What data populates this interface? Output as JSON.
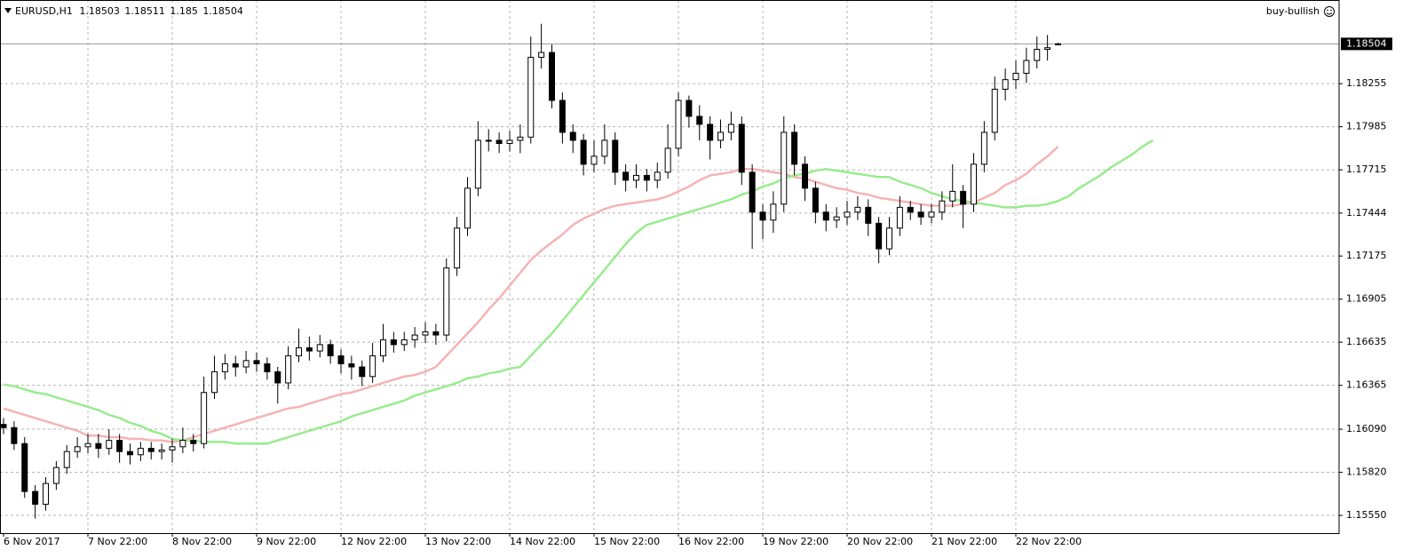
{
  "chart_data": {
    "type": "candlestick",
    "symbol": "EURUSD,H1",
    "indicator_label": "buy-bullish",
    "categories": [
      "6 Nov 2017",
      null,
      null,
      null,
      null,
      null,
      null,
      null,
      "7 Nov 22:00",
      null,
      null,
      null,
      null,
      null,
      null,
      null,
      "8 Nov 22:00",
      null,
      null,
      null,
      null,
      null,
      null,
      null,
      "9 Nov 22:00",
      null,
      null,
      null,
      null,
      null,
      null,
      null,
      "12 Nov 22:00",
      null,
      null,
      null,
      null,
      null,
      null,
      null,
      "13 Nov 22:00",
      null,
      null,
      null,
      null,
      null,
      null,
      null,
      "14 Nov 22:00",
      null,
      null,
      null,
      null,
      null,
      null,
      null,
      "15 Nov 22:00",
      null,
      null,
      null,
      null,
      null,
      null,
      null,
      "16 Nov 22:00",
      null,
      null,
      null,
      null,
      null,
      null,
      null,
      "19 Nov 22:00",
      null,
      null,
      null,
      null,
      null,
      null,
      null,
      "20 Nov 22:00",
      null,
      null,
      null,
      null,
      null,
      null,
      null,
      "21 Nov 22:00",
      null,
      null,
      null,
      null,
      null,
      null,
      null,
      "22 Nov 22:00",
      null,
      null,
      null,
      null,
      null,
      null,
      null,
      null,
      null,
      null,
      null,
      null,
      null
    ],
    "open": [
      1.1612,
      1.161,
      1.16,
      1.157,
      1.1562,
      1.1575,
      1.1585,
      1.1595,
      1.1598,
      1.16,
      1.1597,
      1.1602,
      1.1595,
      1.1593,
      1.1597,
      1.1595,
      1.1596,
      1.1598,
      1.1602,
      1.16,
      1.1632,
      1.1645,
      1.165,
      1.1648,
      1.1652,
      1.165,
      1.1645,
      1.1638,
      1.1655,
      1.166,
      1.1658,
      1.1662,
      1.1655,
      1.165,
      1.1648,
      1.1642,
      1.1655,
      1.1665,
      1.1662,
      1.1665,
      1.1668,
      1.167,
      1.1668,
      1.171,
      1.1735,
      1.176,
      1.179,
      1.179,
      1.1788,
      1.179,
      1.1792,
      1.1842,
      1.1845,
      1.1815,
      1.1795,
      1.179,
      1.1775,
      1.178,
      1.179,
      1.177,
      1.1765,
      1.1768,
      1.1765,
      1.177,
      1.1785,
      1.1815,
      1.1805,
      1.18,
      1.179,
      1.1795,
      1.18,
      1.177,
      1.1745,
      1.174,
      1.175,
      1.1795,
      1.1775,
      1.176,
      1.1745,
      1.174,
      1.1742,
      1.1745,
      1.1748,
      1.1738,
      1.1722,
      1.1735,
      1.1748,
      1.1745,
      1.1742,
      1.1745,
      1.1752,
      1.1758,
      1.175,
      1.1775,
      1.1795,
      1.1822,
      1.1828,
      1.1832,
      1.184,
      1.1847,
      1.18503,
      null,
      null,
      null,
      null,
      null,
      null,
      null,
      null,
      null
    ],
    "high": [
      1.1616,
      1.1614,
      1.1604,
      1.1574,
      1.1579,
      1.1589,
      1.1599,
      1.1604,
      1.1606,
      1.1606,
      1.1609,
      1.1606,
      1.16,
      1.1601,
      1.1601,
      1.16,
      1.1603,
      1.161,
      1.1606,
      1.1642,
      1.1655,
      1.1656,
      1.1655,
      1.1658,
      1.1657,
      1.1654,
      1.1648,
      1.1661,
      1.1672,
      1.1667,
      1.1668,
      1.1665,
      1.1659,
      1.1655,
      1.1652,
      1.1663,
      1.1675,
      1.167,
      1.167,
      1.1673,
      1.1676,
      1.1675,
      1.1716,
      1.1742,
      1.1767,
      1.1802,
      1.1797,
      1.1795,
      1.1796,
      1.18,
      1.1855,
      1.1863,
      1.185,
      1.182,
      1.18,
      1.1794,
      1.179,
      1.18,
      1.1795,
      1.1775,
      1.1775,
      1.1772,
      1.1776,
      1.18,
      1.182,
      1.1818,
      1.1812,
      1.1805,
      1.1803,
      1.1808,
      1.1805,
      1.1775,
      1.175,
      1.1758,
      1.1805,
      1.18,
      1.178,
      1.1764,
      1.175,
      1.1748,
      1.1752,
      1.1755,
      1.1753,
      1.1742,
      1.1742,
      1.1755,
      1.1752,
      1.175,
      1.175,
      1.1758,
      1.1775,
      1.1762,
      1.1782,
      1.1802,
      1.183,
      1.1835,
      1.184,
      1.1848,
      1.1855,
      1.1856,
      1.18511,
      null,
      null,
      null,
      null,
      null,
      null,
      null,
      null,
      null
    ],
    "low": [
      1.1606,
      1.1596,
      1.1566,
      1.1553,
      1.1558,
      1.1571,
      1.1581,
      1.1591,
      1.1594,
      1.1591,
      1.1593,
      1.1588,
      1.1587,
      1.1589,
      1.159,
      1.159,
      1.1588,
      1.1594,
      1.1595,
      1.1597,
      1.1628,
      1.164,
      1.1642,
      1.1644,
      1.1645,
      1.164,
      1.1625,
      1.1634,
      1.1651,
      1.1652,
      1.1654,
      1.165,
      1.1644,
      1.164,
      1.1636,
      1.1638,
      1.1651,
      1.1657,
      1.1658,
      1.166,
      1.1663,
      1.1662,
      1.1664,
      1.1705,
      1.173,
      1.1755,
      1.1783,
      1.1782,
      1.1783,
      1.1782,
      1.1788,
      1.1835,
      1.181,
      1.1788,
      1.1782,
      1.1768,
      1.177,
      1.1775,
      1.1762,
      1.1758,
      1.176,
      1.1758,
      1.176,
      1.1766,
      1.178,
      1.1798,
      1.179,
      1.1778,
      1.1785,
      1.179,
      1.1762,
      1.1722,
      1.1728,
      1.1732,
      1.1745,
      1.1768,
      1.1752,
      1.1738,
      1.1733,
      1.1735,
      1.1737,
      1.174,
      1.173,
      1.1713,
      1.1718,
      1.173,
      1.174,
      1.1737,
      1.1738,
      1.174,
      1.1748,
      1.1735,
      1.1745,
      1.177,
      1.179,
      1.1815,
      1.1822,
      1.1826,
      1.1835,
      1.184,
      1.185,
      null,
      null,
      null,
      null,
      null,
      null,
      null,
      null,
      null
    ],
    "close": [
      1.161,
      1.16,
      1.157,
      1.1562,
      1.1575,
      1.1585,
      1.1595,
      1.1598,
      1.16,
      1.1597,
      1.1602,
      1.1595,
      1.1593,
      1.1597,
      1.1595,
      1.1596,
      1.1598,
      1.1602,
      1.16,
      1.1632,
      1.1645,
      1.165,
      1.1648,
      1.1652,
      1.165,
      1.1645,
      1.1638,
      1.1655,
      1.166,
      1.1658,
      1.1662,
      1.1655,
      1.165,
      1.1648,
      1.1642,
      1.1655,
      1.1665,
      1.1662,
      1.1665,
      1.1668,
      1.167,
      1.1668,
      1.171,
      1.1735,
      1.176,
      1.179,
      1.179,
      1.1788,
      1.179,
      1.1792,
      1.1842,
      1.1845,
      1.1815,
      1.1795,
      1.179,
      1.1775,
      1.178,
      1.179,
      1.177,
      1.1765,
      1.1768,
      1.1765,
      1.177,
      1.1785,
      1.1815,
      1.1805,
      1.18,
      1.179,
      1.1795,
      1.18,
      1.177,
      1.1745,
      1.174,
      1.175,
      1.1795,
      1.1775,
      1.176,
      1.1745,
      1.174,
      1.1742,
      1.1745,
      1.1748,
      1.1738,
      1.1722,
      1.1735,
      1.1748,
      1.1745,
      1.1742,
      1.1745,
      1.1752,
      1.1758,
      1.175,
      1.1775,
      1.1795,
      1.1822,
      1.1828,
      1.1832,
      1.184,
      1.1847,
      1.1848,
      1.18504,
      null,
      null,
      null,
      null,
      null,
      null,
      null,
      null,
      null
    ],
    "ma_lines": [
      {
        "color": "#f6b3b3",
        "values": [
          1.1622,
          1.162,
          1.1618,
          1.1616,
          1.1614,
          1.1612,
          1.161,
          1.1608,
          1.1605,
          1.1605,
          1.1604,
          1.1604,
          1.1603,
          1.1603,
          1.1602,
          1.1602,
          1.1601,
          1.1602,
          1.1604,
          1.1606,
          1.1608,
          1.161,
          1.1612,
          1.1614,
          1.1616,
          1.1618,
          1.162,
          1.1622,
          1.1623,
          1.1625,
          1.1627,
          1.1629,
          1.1631,
          1.1632,
          1.1634,
          1.1636,
          1.1638,
          1.164,
          1.1642,
          1.1643,
          1.1645,
          1.1648,
          1.1655,
          1.1662,
          1.1669,
          1.1676,
          1.1684,
          1.1691,
          1.1699,
          1.1707,
          1.1715,
          1.1721,
          1.1726,
          1.1731,
          1.1737,
          1.1741,
          1.1744,
          1.1747,
          1.1749,
          1.175,
          1.1751,
          1.1752,
          1.1753,
          1.1755,
          1.1758,
          1.1761,
          1.1765,
          1.1768,
          1.1769,
          1.177,
          1.1772,
          1.1772,
          1.1771,
          1.177,
          1.1769,
          1.1767,
          1.1766,
          1.1764,
          1.1762,
          1.176,
          1.1759,
          1.1757,
          1.1756,
          1.1754,
          1.1753,
          1.1752,
          1.1751,
          1.175,
          1.1749,
          1.1749,
          1.1749,
          1.175,
          1.1751,
          1.1754,
          1.1757,
          1.1762,
          1.1765,
          1.1769,
          1.1775,
          1.178,
          1.1786,
          null,
          null,
          null,
          null,
          null,
          null,
          null,
          null,
          null
        ]
      },
      {
        "color": "#98ec8e",
        "values": [
          1.1637,
          1.1636,
          1.1634,
          1.1632,
          1.1631,
          1.1629,
          1.1627,
          1.1625,
          1.1623,
          1.1621,
          1.1618,
          1.1616,
          1.1613,
          1.1611,
          1.1608,
          1.1606,
          1.1603,
          1.1602,
          1.1602,
          1.1601,
          1.1601,
          1.1601,
          1.16,
          1.16,
          1.16,
          1.16,
          1.1602,
          1.1604,
          1.1606,
          1.1608,
          1.161,
          1.1612,
          1.1614,
          1.1617,
          1.1619,
          1.1621,
          1.1623,
          1.1625,
          1.1627,
          1.163,
          1.1632,
          1.1634,
          1.1636,
          1.1638,
          1.1641,
          1.1642,
          1.1644,
          1.1645,
          1.1647,
          1.1648,
          1.1655,
          1.1662,
          1.1669,
          1.1677,
          1.1685,
          1.1693,
          1.1701,
          1.1709,
          1.1717,
          1.1725,
          1.1732,
          1.1737,
          1.1739,
          1.1741,
          1.1743,
          1.1745,
          1.1747,
          1.1749,
          1.1751,
          1.1753,
          1.1756,
          1.1758,
          1.1761,
          1.1763,
          1.1766,
          1.1768,
          1.1769,
          1.1771,
          1.1772,
          1.1771,
          1.177,
          1.1769,
          1.1768,
          1.1767,
          1.1767,
          1.1764,
          1.1762,
          1.176,
          1.1757,
          1.1755,
          1.1753,
          1.1752,
          1.1751,
          1.175,
          1.1749,
          1.1748,
          1.1748,
          1.1749,
          1.1749,
          1.175,
          1.1752,
          1.1755,
          1.176,
          1.1764,
          1.1768,
          1.1773,
          1.1777,
          1.1781,
          1.1786,
          1.179
        ]
      }
    ],
    "ylim": [
      1.15439,
      1.18779
    ],
    "yticks": [
      {
        "value": 1.1555,
        "label": "1.15550"
      },
      {
        "value": 1.1582,
        "label": "1.15820"
      },
      {
        "value": 1.1609,
        "label": "1.16090"
      },
      1.16365,
      1.16635,
      1.16905,
      1.17175,
      1.17444,
      1.17715,
      1.17985,
      1.18255
    ],
    "grid": true,
    "up_color": "#ffffff",
    "down_color": "#000000",
    "outline_color": "#000000"
  }
}
